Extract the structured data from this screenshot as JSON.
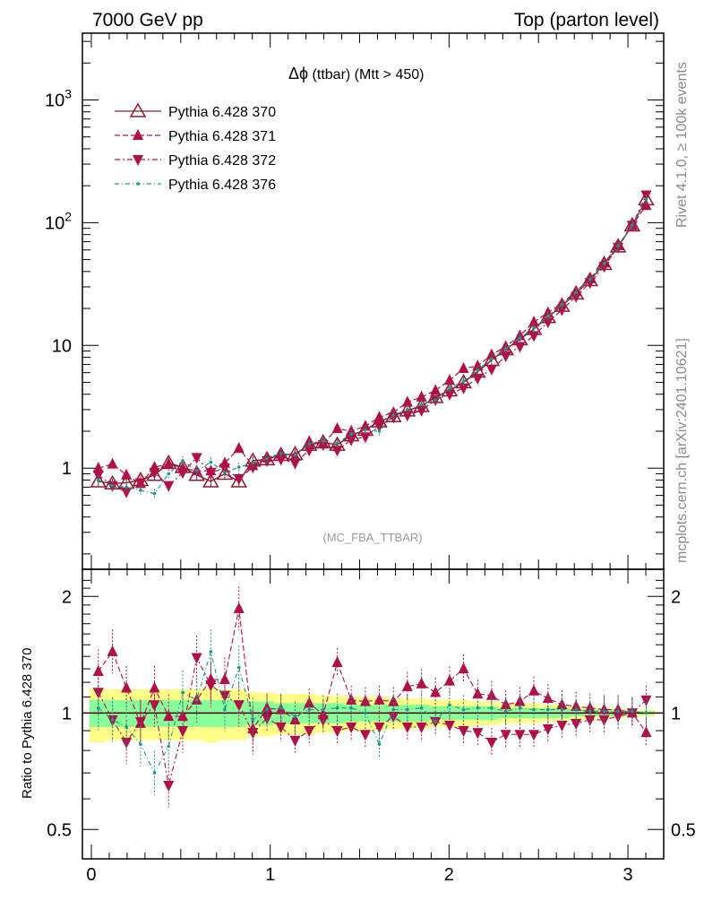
{
  "header": {
    "left": "7000 GeV pp",
    "right": "Top (parton level)"
  },
  "plot_title": {
    "prefix": "Δϕ",
    "suffix": " (ttbar) (Mtt > 450)"
  },
  "side_labels": {
    "rivet": "Rivet 4.1.0, ≥ 100k events",
    "mcplots": "mcplots.cern.ch [arXiv:2401.10621]"
  },
  "analysis_label": "(MC_FBA_TTBAR)",
  "ratio_ylabel": "Ratio to Pythia 6.428 370",
  "colors": {
    "s370": "#8b1a2b",
    "s371": "#b01048",
    "s372": "#b01048",
    "s376": "#1a9a8a",
    "band_yellow": "#ffff88",
    "band_green": "#88ff99"
  },
  "chart_data": [
    {
      "type": "line",
      "title": "Δϕ (ttbar) (Mtt > 450)",
      "xlabel": "",
      "ylabel": "",
      "yscale": "log",
      "xlim": [
        -0.05,
        3.2
      ],
      "ylim": [
        0.15,
        3500
      ],
      "x": [
        0.039,
        0.118,
        0.196,
        0.275,
        0.353,
        0.432,
        0.511,
        0.589,
        0.668,
        0.746,
        0.825,
        0.903,
        0.982,
        1.06,
        1.139,
        1.218,
        1.296,
        1.375,
        1.453,
        1.532,
        1.61,
        1.689,
        1.767,
        1.846,
        1.924,
        2.003,
        2.081,
        2.16,
        2.238,
        2.317,
        2.396,
        2.474,
        2.553,
        2.631,
        2.71,
        2.788,
        2.867,
        2.945,
        3.024,
        3.102
      ],
      "series": [
        {
          "name": "Pythia 6.428 370",
          "values": [
            0.78,
            0.75,
            0.76,
            0.8,
            0.88,
            1.1,
            1.02,
            0.88,
            0.78,
            0.9,
            0.78,
            1.15,
            1.18,
            1.28,
            1.3,
            1.55,
            1.62,
            1.55,
            1.85,
            2.05,
            2.4,
            2.65,
            2.95,
            3.2,
            3.8,
            4.3,
            5.0,
            6.1,
            7.6,
            9.3,
            11.2,
            13.6,
            17.0,
            21.0,
            26.5,
            34.0,
            46.0,
            64.0,
            95.0,
            155.0
          ]
        },
        {
          "name": "Pythia 6.428 371",
          "values": [
            1.0,
            1.08,
            0.88,
            0.75,
            1.02,
            1.08,
            1.0,
            0.95,
            0.95,
            1.1,
            1.45,
            1.05,
            1.22,
            1.3,
            1.25,
            1.65,
            1.6,
            2.1,
            2.0,
            2.2,
            2.6,
            2.85,
            3.45,
            3.8,
            4.3,
            5.2,
            6.5,
            6.8,
            8.4,
            9.8,
            12.0,
            15.5,
            18.5,
            22.0,
            27.5,
            35.0,
            47.0,
            65.0,
            95.0,
            138.0
          ]
        },
        {
          "name": "Pythia 6.428 372",
          "values": [
            0.88,
            0.72,
            0.64,
            0.76,
            0.92,
            0.72,
            0.92,
            1.22,
            0.92,
            1.0,
            0.82,
            1.02,
            1.15,
            1.18,
            1.1,
            1.4,
            1.55,
            1.4,
            1.7,
            1.8,
            2.2,
            2.6,
            2.7,
            2.95,
            3.6,
            4.0,
            4.5,
            5.4,
            6.4,
            8.2,
            9.8,
            12.0,
            15.5,
            19.5,
            25.0,
            32.5,
            44.0,
            63.0,
            95.0,
            168.0
          ]
        },
        {
          "name": "Pythia 6.428 376",
          "values": [
            0.8,
            0.72,
            0.7,
            0.66,
            0.62,
            0.9,
            1.15,
            0.95,
            1.12,
            0.92,
            1.02,
            1.1,
            1.2,
            1.32,
            1.28,
            1.58,
            1.66,
            1.6,
            1.9,
            2.05,
            2.0,
            2.7,
            3.0,
            3.3,
            3.6,
            4.5,
            5.1,
            6.3,
            7.8,
            9.4,
            11.5,
            13.9,
            17.3,
            21.4,
            27.0,
            34.5,
            46.5,
            64.5,
            95.5,
            155.0
          ]
        }
      ],
      "legend": [
        "Pythia 6.428 370",
        "Pythia 6.428 371",
        "Pythia 6.428 372",
        "Pythia 6.428 376"
      ],
      "ytick_labels": [
        "1",
        "10",
        "10^2",
        "10^3"
      ]
    },
    {
      "type": "line",
      "title": "",
      "xlabel": "",
      "ylabel": "Ratio to Pythia 6.428 370",
      "xlim": [
        -0.05,
        3.2
      ],
      "ylim": [
        0.42,
        2.35
      ],
      "x": [
        0.039,
        0.118,
        0.196,
        0.275,
        0.353,
        0.432,
        0.511,
        0.589,
        0.668,
        0.746,
        0.825,
        0.903,
        0.982,
        1.06,
        1.139,
        1.218,
        1.296,
        1.375,
        1.453,
        1.532,
        1.61,
        1.689,
        1.767,
        1.846,
        1.924,
        2.003,
        2.081,
        2.16,
        2.238,
        2.317,
        2.396,
        2.474,
        2.553,
        2.631,
        2.71,
        2.788,
        2.867,
        2.945,
        3.024,
        3.102
      ],
      "series": [
        {
          "name": "Pythia 6.428 371",
          "values": [
            1.28,
            1.44,
            1.16,
            0.94,
            1.16,
            0.98,
            0.98,
            1.08,
            1.22,
            1.22,
            1.86,
            0.91,
            1.03,
            1.02,
            0.96,
            1.06,
            0.99,
            1.35,
            1.08,
            1.07,
            1.08,
            1.07,
            1.17,
            1.19,
            1.13,
            1.21,
            1.3,
            1.12,
            1.11,
            1.05,
            1.07,
            1.14,
            1.09,
            1.05,
            1.04,
            1.03,
            1.02,
            1.02,
            1.0,
            0.89
          ]
        },
        {
          "name": "Pythia 6.428 372",
          "values": [
            1.13,
            0.96,
            0.84,
            0.95,
            1.05,
            0.65,
            0.9,
            1.39,
            1.18,
            1.11,
            1.05,
            0.89,
            0.97,
            0.92,
            0.85,
            0.9,
            0.96,
            0.9,
            0.92,
            0.88,
            0.92,
            0.98,
            0.92,
            0.92,
            0.95,
            0.93,
            0.9,
            0.89,
            0.84,
            0.88,
            0.88,
            0.88,
            0.91,
            0.93,
            0.94,
            0.96,
            0.96,
            0.98,
            1.0,
            1.08
          ]
        },
        {
          "name": "Pythia 6.428 376",
          "values": [
            1.03,
            0.96,
            0.92,
            0.83,
            0.7,
            0.82,
            1.13,
            1.08,
            1.44,
            1.02,
            1.31,
            0.96,
            1.02,
            1.03,
            0.98,
            1.02,
            1.02,
            1.03,
            1.03,
            1.0,
            0.83,
            1.02,
            1.02,
            1.03,
            0.95,
            1.05,
            1.02,
            1.03,
            1.03,
            1.01,
            1.03,
            1.02,
            1.02,
            1.02,
            1.02,
            1.01,
            1.01,
            1.01,
            1.01,
            1.0
          ]
        }
      ],
      "band_yellow_halfwidth": [
        0.16,
        0.15,
        0.15,
        0.15,
        0.15,
        0.15,
        0.15,
        0.15,
        0.16,
        0.15,
        0.15,
        0.13,
        0.13,
        0.12,
        0.12,
        0.12,
        0.11,
        0.11,
        0.1,
        0.1,
        0.1,
        0.09,
        0.09,
        0.09,
        0.08,
        0.08,
        0.08,
        0.07,
        0.07,
        0.06,
        0.06,
        0.06,
        0.05,
        0.05,
        0.04,
        0.04,
        0.03,
        0.03,
        0.02,
        0.02
      ],
      "band_green_halfwidth": [
        0.08,
        0.08,
        0.08,
        0.08,
        0.08,
        0.08,
        0.08,
        0.08,
        0.08,
        0.08,
        0.08,
        0.07,
        0.07,
        0.06,
        0.06,
        0.06,
        0.06,
        0.06,
        0.05,
        0.05,
        0.05,
        0.05,
        0.05,
        0.05,
        0.04,
        0.04,
        0.04,
        0.04,
        0.04,
        0.03,
        0.03,
        0.03,
        0.03,
        0.03,
        0.02,
        0.02,
        0.02,
        0.02,
        0.01,
        0.01
      ],
      "ytick_labels": [
        "0.5",
        "1",
        "2"
      ],
      "xtick_labels": [
        "0",
        "1",
        "2",
        "3"
      ]
    }
  ]
}
